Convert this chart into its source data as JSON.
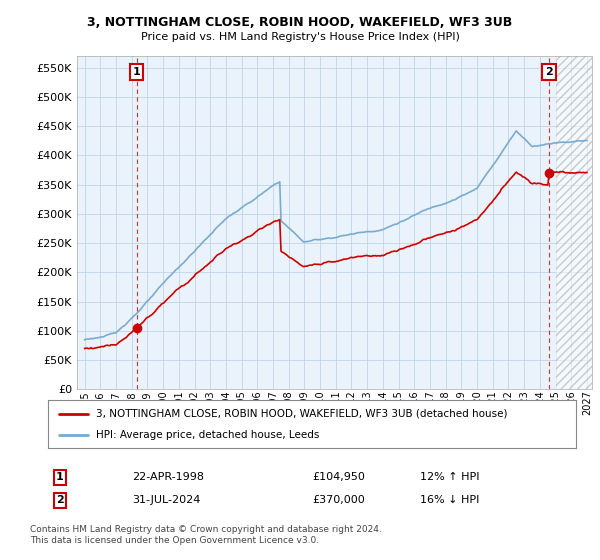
{
  "title": "3, NOTTINGHAM CLOSE, ROBIN HOOD, WAKEFIELD, WF3 3UB",
  "subtitle": "Price paid vs. HM Land Registry's House Price Index (HPI)",
  "ytick_values": [
    0,
    50000,
    100000,
    150000,
    200000,
    250000,
    300000,
    350000,
    400000,
    450000,
    500000,
    550000
  ],
  "ylim": [
    0,
    570000
  ],
  "xlim_start": 1994.5,
  "xlim_end": 2027.3,
  "sale1_date": 1998.31,
  "sale1_price": 104950,
  "sale1_label": "1",
  "sale2_date": 2024.58,
  "sale2_price": 370000,
  "sale2_label": "2",
  "red_line_color": "#cc0000",
  "blue_line_color": "#7aabcf",
  "chart_bg": "#eaf3fb",
  "legend_line1": "3, NOTTINGHAM CLOSE, ROBIN HOOD, WAKEFIELD, WF3 3UB (detached house)",
  "legend_line2": "HPI: Average price, detached house, Leeds",
  "table_row1": [
    "1",
    "22-APR-1998",
    "£104,950",
    "12% ↑ HPI"
  ],
  "table_row2": [
    "2",
    "31-JUL-2024",
    "£370,000",
    "16% ↓ HPI"
  ],
  "footer": "Contains HM Land Registry data © Crown copyright and database right 2024.\nThis data is licensed under the Open Government Licence v3.0.",
  "bg_color": "#ffffff",
  "grid_color": "#c0d4e8",
  "hatch_future_start": 2025.0
}
